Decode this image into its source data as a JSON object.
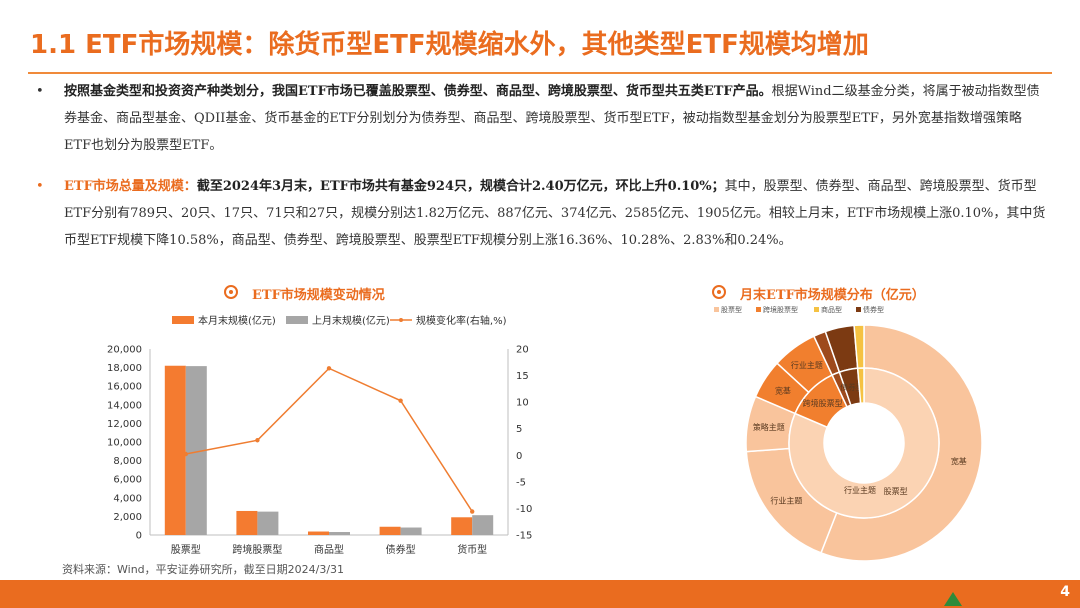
{
  "title": "1.1 ETF市场规模：除货币型ETF规模缩水外，其他类型ETF规模均增加",
  "bullets": {
    "b1_bold": "按照基金类型和投资资产种类划分，我国ETF市场已覆盖股票型、债券型、商品型、跨境股票型、货币型共五类ETF产品。",
    "b1_rest": "根据Wind二级基金分类，将属于被动指数型债券基金、商品型基金、QDII基金、货币基金的ETF分别划分为债券型、商品型、跨境股票型、货币型ETF，被动指数型基金划分为股票型ETF，另外宽基指数增强策略ETF也划分为股票型ETF。",
    "b2_label": "ETF市场总量及规模：",
    "b2_bold": "截至2024年3月末，ETF市场共有基金924只，规模合计2.40万亿元，环比上升0.10%；",
    "b2_rest": "其中，股票型、债券型、商品型、跨境股票型、货币型ETF分别有789只、20只、17只、71只和27只，规模分别达1.82万亿元、887亿元、374亿元、2585亿元、1905亿元。相较上月末，ETF市场规模上涨0.10%，其中货币型ETF规模下降10.58%，商品型、债券型、跨境股票型、股票型ETF规模分别上涨16.36%、10.28%、2.83%和0.24%。"
  },
  "chart_data": [
    {
      "type": "bar",
      "title": "ETF市场规模变动情况",
      "categories": [
        "股票型",
        "跨境股票型",
        "商品型",
        "债券型",
        "货币型"
      ],
      "series": [
        {
          "name": "本月末规模(亿元)",
          "values": [
            18200,
            2585,
            374,
            887,
            1905
          ],
          "color": "#f47b30"
        },
        {
          "name": "上月末规模(亿元)",
          "values": [
            18160,
            2514,
            321,
            804,
            2130
          ],
          "color": "#a6a6a6"
        },
        {
          "name": "规模变化率(右轴,%)",
          "values": [
            0.24,
            2.83,
            16.36,
            10.28,
            -10.58
          ],
          "color": "#ef7d31",
          "axis": "right",
          "kind": "line"
        }
      ],
      "y_left": {
        "min": 0,
        "max": 20000,
        "ticks": [
          "0",
          "2,000",
          "4,000",
          "6,000",
          "8,000",
          "10,000",
          "12,000",
          "14,000",
          "16,000",
          "18,000",
          "20,000"
        ]
      },
      "y_right": {
        "min": -15,
        "max": 20,
        "ticks": [
          "-15",
          "-10",
          "-5",
          "0",
          "5",
          "10",
          "15",
          "20"
        ]
      },
      "legend": "top"
    },
    {
      "type": "pie",
      "title": "月末ETF市场规模分布（亿元）",
      "legend": [
        "股票型",
        "跨境股票型",
        "商品型",
        "债券型"
      ],
      "outer": [
        {
          "label": "宽基",
          "value": 12500,
          "color": "#f9c49c"
        },
        {
          "label": "行业主题",
          "value": 4000,
          "color": "#f9c49c"
        },
        {
          "label": "策略主题",
          "value": 1700,
          "color": "#f9c49c"
        },
        {
          "label": "宽基",
          "value": 1200,
          "color": "#f17f2e"
        },
        {
          "label": "行业主题",
          "value": 1385,
          "color": "#f17f2e"
        },
        {
          "label": "",
          "value": 374,
          "color": "#9e4a1c"
        },
        {
          "label": "",
          "value": 887,
          "color": "#7c3a12"
        },
        {
          "label": "",
          "value": 300,
          "color": "#f5c242"
        }
      ],
      "inner": [
        {
          "label": "股票型",
          "value": 18200,
          "color": "#fbd3b3"
        },
        {
          "label": "跨境股票型",
          "value": 2585,
          "color": "#f17f2e"
        },
        {
          "label": "商品型",
          "value": 374,
          "color": "#9e4a1c"
        },
        {
          "label": "债券型",
          "value": 887,
          "color": "#7c3a12"
        },
        {
          "label": "",
          "value": 300,
          "color": "#f5c242"
        }
      ],
      "center_label": "行业主题"
    }
  ],
  "source": "资料来源：Wind，平安证券研究所，截至日期2024/3/31",
  "page_number": "4"
}
